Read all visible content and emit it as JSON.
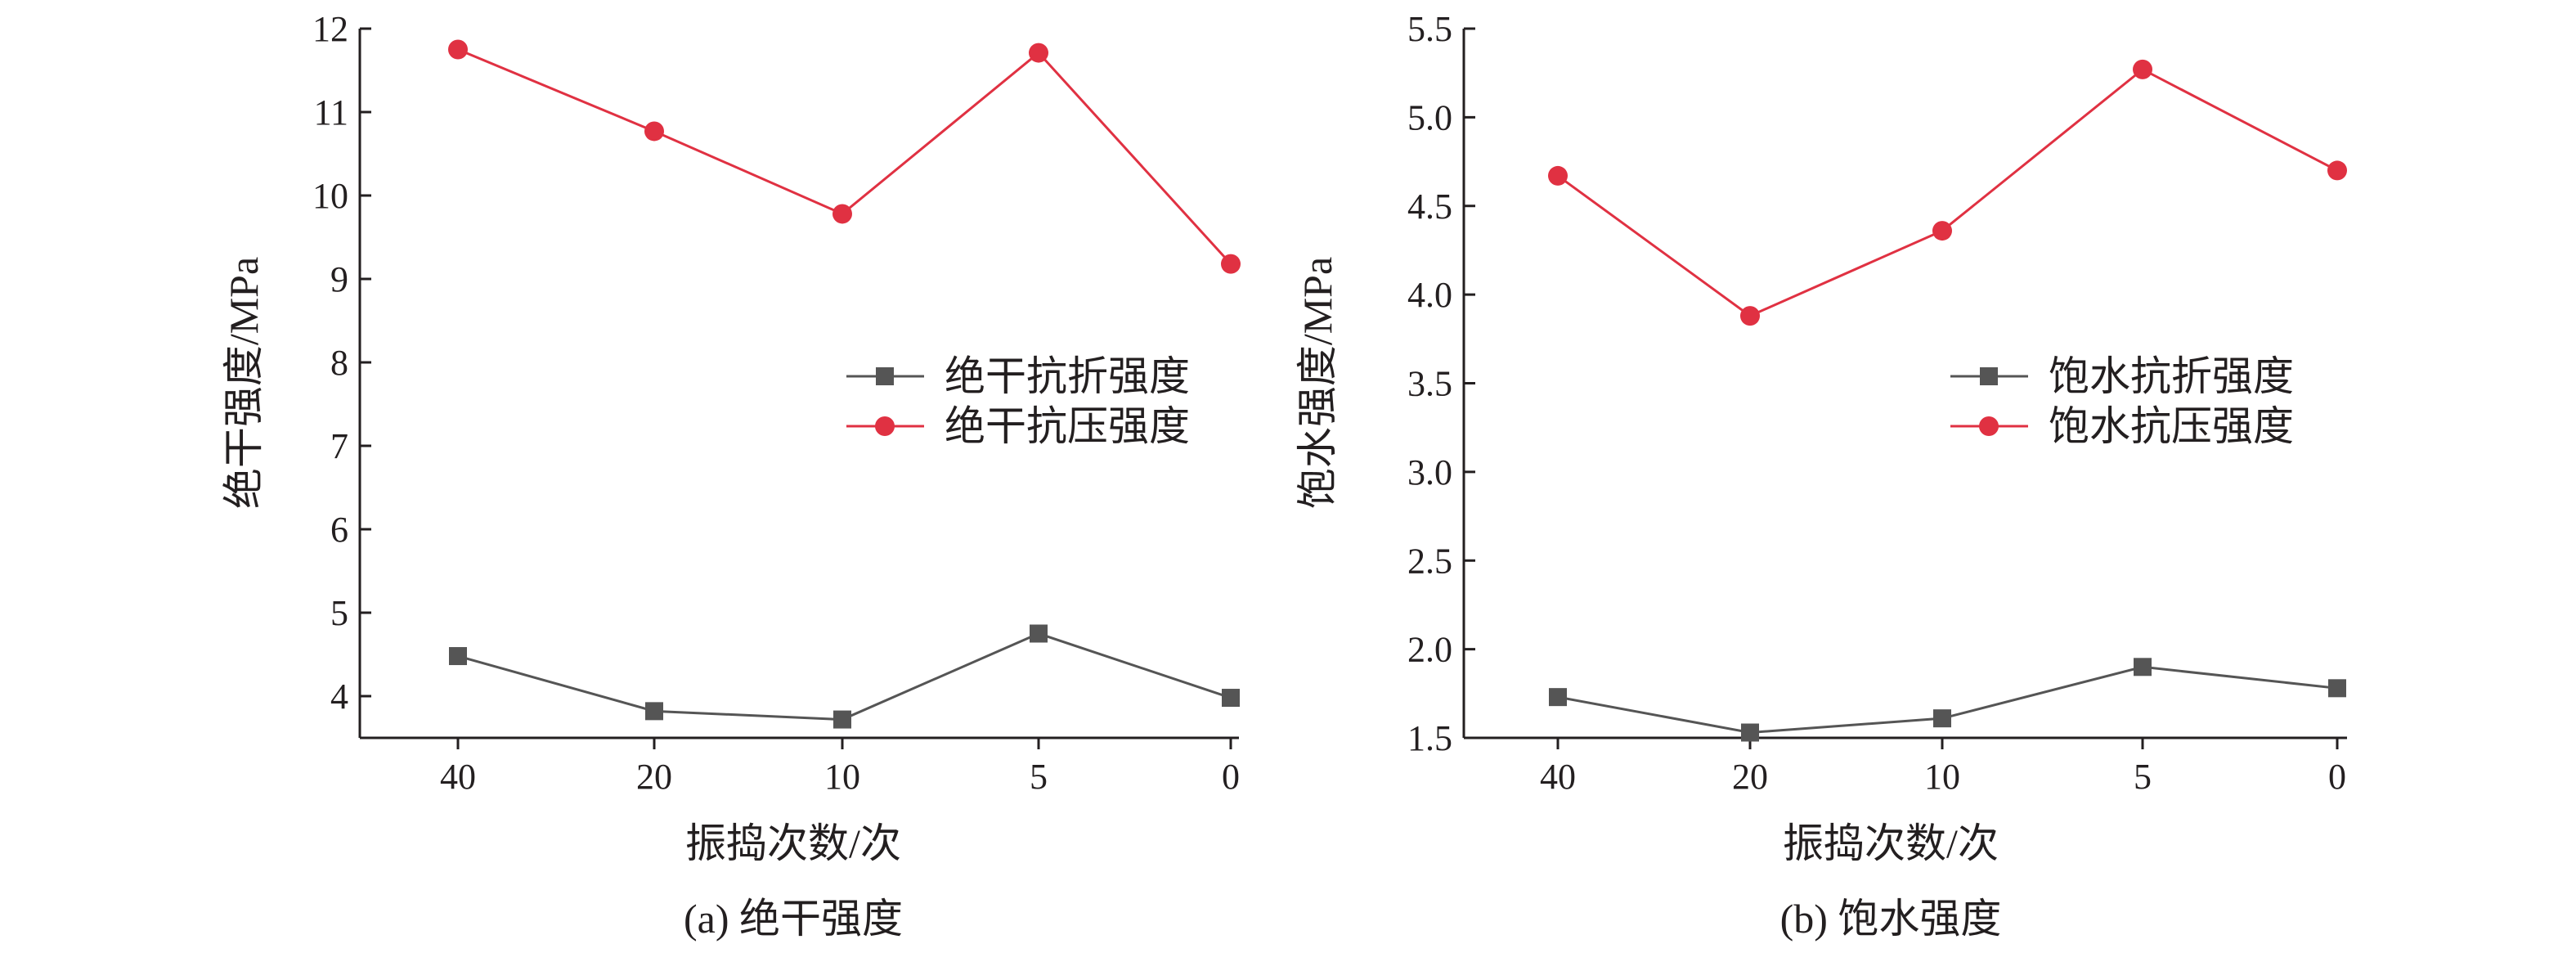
{
  "chart_data": [
    {
      "type": "line",
      "title": "",
      "caption": "(a) 绝干强度",
      "xlabel": "振捣次数/次",
      "ylabel": "绝干强度/MPa",
      "categories": [
        "40",
        "20",
        "10",
        "5",
        "0"
      ],
      "ylim": [
        3.5,
        12
      ],
      "yticks": [
        4,
        5,
        6,
        7,
        8,
        9,
        10,
        11,
        12
      ],
      "ytick_labels": [
        "4",
        "5",
        "6",
        "7",
        "8",
        "9",
        "10",
        "11",
        "12"
      ],
      "grid": false,
      "legend_position": "right-center",
      "series": [
        {
          "name": "绝干抗折强度",
          "marker": "square",
          "color": "#555555",
          "values": [
            4.48,
            3.82,
            3.72,
            4.75,
            3.98
          ]
        },
        {
          "name": "绝干抗压强度",
          "marker": "circle",
          "color": "#e03142",
          "values": [
            11.75,
            10.77,
            9.78,
            11.71,
            9.18
          ]
        }
      ]
    },
    {
      "type": "line",
      "title": "",
      "caption": "(b) 饱水强度",
      "xlabel": "振捣次数/次",
      "ylabel": "饱水强度/MPa",
      "categories": [
        "40",
        "20",
        "10",
        "5",
        "0"
      ],
      "ylim": [
        1.5,
        5.5
      ],
      "yticks": [
        1.5,
        2.0,
        2.5,
        3.0,
        3.5,
        4.0,
        4.5,
        5.0,
        5.5
      ],
      "ytick_labels": [
        "1.5",
        "2.0",
        "2.5",
        "3.0",
        "3.5",
        "4.0",
        "4.5",
        "5.0",
        "5.5"
      ],
      "grid": false,
      "legend_position": "right-center",
      "series": [
        {
          "name": "饱水抗折强度",
          "marker": "square",
          "color": "#555555",
          "values": [
            1.73,
            1.53,
            1.61,
            1.9,
            1.78
          ]
        },
        {
          "name": "饱水抗压强度",
          "marker": "circle",
          "color": "#e03142",
          "values": [
            4.67,
            3.88,
            4.36,
            5.27,
            4.7
          ]
        }
      ]
    }
  ]
}
